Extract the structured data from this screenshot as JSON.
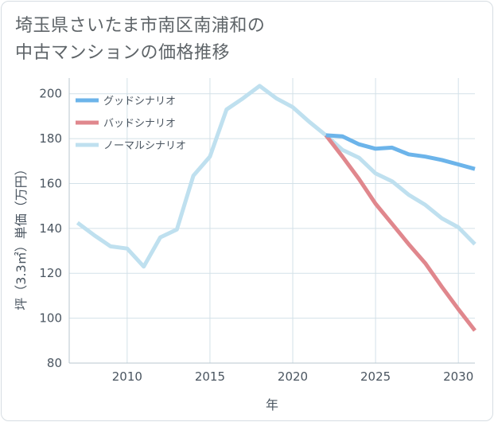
{
  "title_lines": [
    "埼玉県さいたま市南区南浦和の",
    "中古マンションの価格推移"
  ],
  "colors": {
    "good": "#6cb4ea",
    "bad": "#e0878d",
    "normal": "#bfe0ef",
    "grid": "#d3e1e8",
    "axis": "#4a5560"
  },
  "chart_data": {
    "type": "line",
    "title": "埼玉県さいたま市南区南浦和の中古マンションの価格推移",
    "xlabel": "年",
    "ylabel": "坪（3.3㎡）単価（万円）",
    "xlim": [
      2006.5,
      2031
    ],
    "ylim": [
      80,
      207
    ],
    "x_ticks": [
      2010,
      2015,
      2020,
      2025,
      2030
    ],
    "y_ticks": [
      80,
      100,
      120,
      140,
      160,
      180,
      200
    ],
    "legend_position": "top-left",
    "series": [
      {
        "name": "グッドシナリオ",
        "key": "good",
        "x": [
          2022,
          2023,
          2024,
          2025,
          2026,
          2027,
          2028,
          2029,
          2030,
          2031
        ],
        "values": [
          181.5,
          181,
          177.5,
          175.5,
          176,
          173,
          172,
          170.5,
          168.5,
          166.5
        ]
      },
      {
        "name": "バッドシナリオ",
        "key": "bad",
        "x": [
          2022,
          2023,
          2024,
          2025,
          2026,
          2027,
          2028,
          2029,
          2030,
          2031
        ],
        "values": [
          181.5,
          172,
          162,
          151,
          142,
          133,
          124.5,
          114,
          104,
          94.5
        ]
      },
      {
        "name": "ノーマルシナリオ",
        "key": "normal",
        "x": [
          2007,
          2008,
          2009,
          2010,
          2011,
          2012,
          2013,
          2014,
          2015,
          2016,
          2017,
          2018,
          2019,
          2020,
          2021,
          2022,
          2023,
          2024,
          2025,
          2026,
          2027,
          2028,
          2029,
          2030,
          2031
        ],
        "values": [
          142.5,
          137,
          132,
          131,
          123,
          136,
          139.5,
          163.5,
          172,
          193,
          198,
          203.5,
          198,
          194,
          187.5,
          181.5,
          175,
          171.5,
          164.5,
          161,
          155,
          150.5,
          144.5,
          140.5,
          133
        ]
      }
    ]
  }
}
